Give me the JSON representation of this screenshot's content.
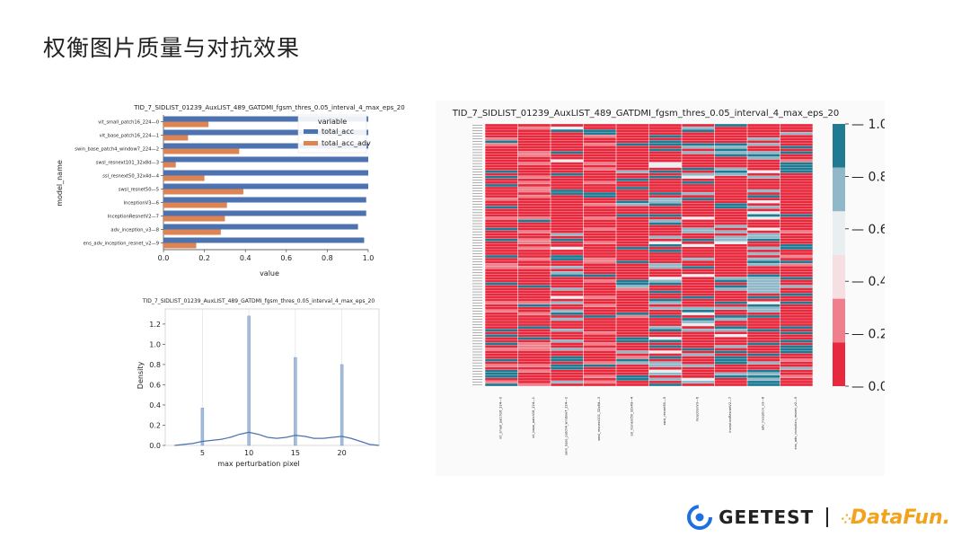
{
  "slide": {
    "title": "权衡图片质量与对抗效果"
  },
  "logos": {
    "geetest": "GEETEST",
    "datafun": "DataFun."
  },
  "chart_data": [
    {
      "type": "bar",
      "orientation": "horizontal",
      "title": "TID_7_SIDLIST_01239_AuxLIST_489_GATDMI_fgsm_thres_0.05_interval_4_max_eps_20",
      "xlabel": "value",
      "ylabel": "model_name",
      "xlim": [
        0,
        1.0
      ],
      "xticks": [
        "0.0",
        "0.2",
        "0.4",
        "0.6",
        "0.8",
        "1.0"
      ],
      "categories": [
        "vit_small_patch16_224—0",
        "vit_base_patch16_224—1",
        "swin_base_patch4_window7_224—2",
        "swsl_resnext101_32x8d—3",
        "ssl_resnext50_32x4d—4",
        "swsl_resnet50—5",
        "InceptionV3—6",
        "InceptionResnetV2—7",
        "adv_inception_v3—8",
        "ens_adv_inception_resnet_v2—9"
      ],
      "legend": {
        "title": "variable",
        "placement": "top-right"
      },
      "series": [
        {
          "name": "total_acc",
          "color": "#4c72b0",
          "values": [
            1.0,
            1.0,
            1.0,
            1.0,
            1.0,
            1.0,
            0.99,
            0.99,
            0.95,
            0.98
          ]
        },
        {
          "name": "total_acc_adv",
          "color": "#dd8452",
          "values": [
            0.22,
            0.12,
            0.37,
            0.06,
            0.2,
            0.39,
            0.31,
            0.3,
            0.28,
            0.16
          ]
        }
      ]
    },
    {
      "type": "area",
      "subtype": "histogram-kde",
      "title": "TID_7_SIDLIST_01239_AuxLIST_489_GATDMI_fgsm_thres_0.05_interval_4_max_eps_20",
      "xlabel": "max perturbation pixel",
      "ylabel": "Density",
      "xlim": [
        1,
        24
      ],
      "ylim": [
        0,
        1.35
      ],
      "xticks": [
        "5",
        "10",
        "15",
        "20"
      ],
      "yticks": [
        "0.0",
        "0.2",
        "0.4",
        "0.6",
        "0.8",
        "1.0",
        "1.2"
      ],
      "hist_bins": [
        {
          "x": 5,
          "density": 0.37
        },
        {
          "x": 10,
          "density": 1.28
        },
        {
          "x": 15,
          "density": 0.87
        },
        {
          "x": 20,
          "density": 0.8
        }
      ],
      "kde": {
        "x": [
          2,
          3,
          4,
          5,
          6,
          7,
          8,
          9,
          10,
          11,
          12,
          13,
          14,
          15,
          16,
          17,
          18,
          19,
          20,
          21,
          22,
          23,
          24
        ],
        "y": [
          0.0,
          0.01,
          0.02,
          0.04,
          0.05,
          0.06,
          0.08,
          0.11,
          0.13,
          0.11,
          0.08,
          0.07,
          0.08,
          0.1,
          0.09,
          0.07,
          0.07,
          0.08,
          0.09,
          0.07,
          0.04,
          0.01,
          0.0
        ]
      },
      "color": "#4c72b0"
    },
    {
      "type": "heatmap",
      "title": "TID_7_SIDLIST_01239_AuxLIST_489_GATDMI_fgsm_thres_0.05_interval_4_max_eps_20",
      "columns": [
        "vit_small_patch16_224—0",
        "vit_base_patch16_224—1",
        "swin_base_patch4_window7_224—2",
        "swsl_resnext101_32x8d—3",
        "ssl_resnext50_32x4d—4",
        "swsl_resnet50—5",
        "InceptionV3—6",
        "InceptionResnetV2—7",
        "adv_inception_v3—8",
        "ens_adv_inception_resnet_v2—9"
      ],
      "colorbar": {
        "vmin": 0.0,
        "vmax": 1.0,
        "ticks": [
          "1.0",
          "0.8",
          "0.6",
          "0.4",
          "0.2",
          "0.0"
        ],
        "colors": [
          "#e8283c",
          "#ef7f8a",
          "#f5dfe2",
          "#e9eef0",
          "#8fb8c8",
          "#1f7a92"
        ]
      },
      "rows": 96,
      "column_means": [
        0.1,
        0.08,
        0.3,
        0.05,
        0.2,
        0.35,
        0.3,
        0.3,
        0.3,
        0.18
      ]
    }
  ]
}
